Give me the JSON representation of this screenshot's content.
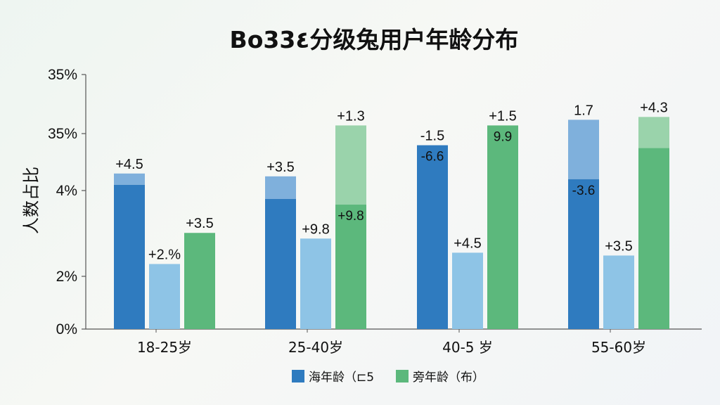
{
  "chart_data": {
    "type": "bar",
    "title": "Bo33٤分级兔用户年龄分布",
    "xlabel": "",
    "ylabel": "人数占比",
    "y_ticks": [
      "35%",
      "35%",
      "4%",
      "2%",
      "0%"
    ],
    "categories": [
      "18-25岁",
      "25-40岁",
      "40-5 岁",
      "55-60岁"
    ],
    "series": [
      {
        "name": "海年龄（⊏5",
        "color": "#2f7bbf",
        "highlight_color": "#7fb0dc",
        "values": [
          5.1,
          4.6,
          6.5,
          5.3
        ],
        "totals": [
          5.5,
          5.4,
          6.5,
          7.4
        ],
        "labels": [
          "+4.5",
          "+3.5",
          "-1.5",
          "1.7"
        ],
        "inner_labels": [
          "",
          "",
          "-6.6",
          "-3.6"
        ]
      },
      {
        "name": "",
        "color": "#8ec4e6",
        "highlight_color": "#8ec4e6",
        "values": [
          2.3,
          3.2,
          2.7,
          2.6
        ],
        "totals": [
          2.3,
          3.2,
          2.7,
          2.6
        ],
        "labels": [
          "+2.%",
          "+9.8",
          "+4.5",
          "+3.5"
        ],
        "inner_labels": [
          "",
          "",
          "",
          ""
        ]
      },
      {
        "name": "旁年龄（布）",
        "color": "#5cb87c",
        "highlight_color": "#9ad3ab",
        "values": [
          3.4,
          4.4,
          7.2,
          6.4
        ],
        "totals": [
          3.4,
          7.2,
          7.2,
          7.5
        ],
        "labels": [
          "+3.5",
          "+1.3",
          "+1.5",
          "+4.3"
        ],
        "inner_labels": [
          "",
          "+9.8",
          "9.9",
          ""
        ]
      }
    ],
    "legend_position": "bottom-center",
    "grid": false
  }
}
